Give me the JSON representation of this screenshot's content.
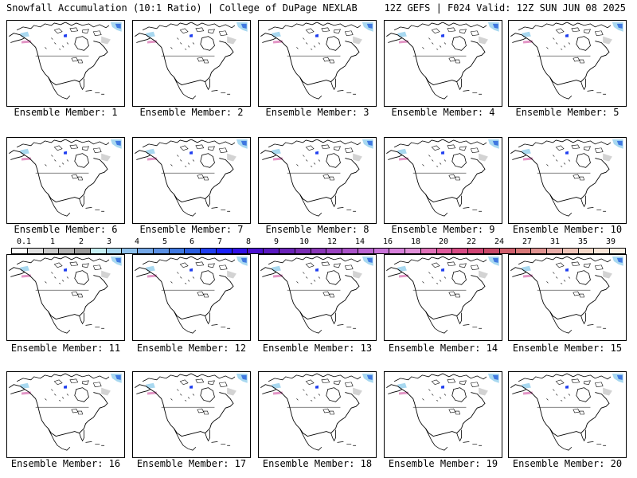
{
  "header": {
    "left_title": "Snowfall Accumulation (10:1 Ratio) | College of DuPage NEXLAB",
    "right_title": "12Z GEFS | F024 Valid: 12Z SUN JUN 08 2025"
  },
  "members": [
    {
      "label": "Ensemble Member: 1"
    },
    {
      "label": "Ensemble Member: 2"
    },
    {
      "label": "Ensemble Member: 3"
    },
    {
      "label": "Ensemble Member: 4"
    },
    {
      "label": "Ensemble Member: 5"
    },
    {
      "label": "Ensemble Member: 6"
    },
    {
      "label": "Ensemble Member: 7"
    },
    {
      "label": "Ensemble Member: 8"
    },
    {
      "label": "Ensemble Member: 9"
    },
    {
      "label": "Ensemble Member: 10"
    },
    {
      "label": "Ensemble Member: 11"
    },
    {
      "label": "Ensemble Member: 12"
    },
    {
      "label": "Ensemble Member: 13"
    },
    {
      "label": "Ensemble Member: 14"
    },
    {
      "label": "Ensemble Member: 15"
    },
    {
      "label": "Ensemble Member: 16"
    },
    {
      "label": "Ensemble Member: 17"
    },
    {
      "label": "Ensemble Member: 18"
    },
    {
      "label": "Ensemble Member: 19"
    },
    {
      "label": "Ensemble Member: 20"
    }
  ],
  "colorbar": {
    "tick_labels": [
      "0.1",
      "1",
      "2",
      "3",
      "4",
      "5",
      "6",
      "7",
      "8",
      "9",
      "10",
      "12",
      "14",
      "16",
      "18",
      "20",
      "22",
      "24",
      "27",
      "31",
      "35",
      "39"
    ],
    "colors": [
      "#ffffff",
      "#e0e0e0",
      "#c8c8c8",
      "#b0b0b0",
      "#9a9a9a",
      "#c6f0f4",
      "#a8d8f0",
      "#8cc0ec",
      "#74a8e8",
      "#5a90e4",
      "#3f78e0",
      "#2a5ee0",
      "#1f3ef0",
      "#1a20f8",
      "#3010e8",
      "#4a10d0",
      "#5a18c0",
      "#6a22b8",
      "#7a2cb4",
      "#8a36b8",
      "#9a42c0",
      "#aa52c8",
      "#ba62d0",
      "#c872d8",
      "#d880dc",
      "#e08ed8",
      "#e070b8",
      "#e05a9c",
      "#d84a84",
      "#d04474",
      "#c84868",
      "#d05e6c",
      "#d87878",
      "#e09290",
      "#e8aca8",
      "#f0c4b8",
      "#f6d8c8",
      "#fae6d8",
      "#fdf2e6"
    ]
  },
  "map_colors": {
    "snow_light": "#a8d8f0",
    "snow_blue": "#3f78e0",
    "snow_dark": "#1f3ef0",
    "snow_grey": "#c8c8c8",
    "snow_pink": "#d050a0"
  }
}
